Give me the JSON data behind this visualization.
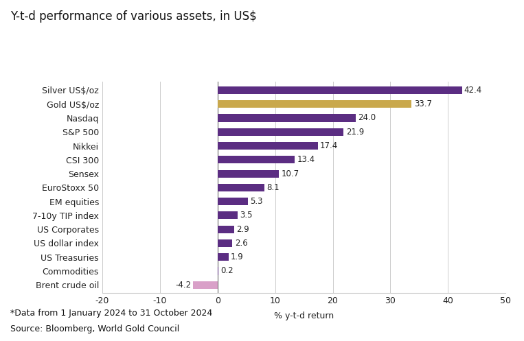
{
  "title": "Y-t-d performance of various assets, in US$",
  "categories": [
    "Brent crude oil",
    "Commodities",
    "US Treasuries",
    "US dollar index",
    "US Corporates",
    "7-10y TIP index",
    "EM equities",
    "EuroStoxx 50",
    "Sensex",
    "CSI 300",
    "Nikkei",
    "S&P 500",
    "Nasdaq",
    "Gold US$/oz",
    "Silver US$/oz"
  ],
  "values": [
    -4.2,
    0.2,
    1.9,
    2.6,
    2.9,
    3.5,
    5.3,
    8.1,
    10.7,
    13.4,
    17.4,
    21.9,
    24.0,
    33.7,
    42.4
  ],
  "colors": [
    "#d9a0c8",
    "#5b2d82",
    "#5b2d82",
    "#5b2d82",
    "#5b2d82",
    "#5b2d82",
    "#5b2d82",
    "#5b2d82",
    "#5b2d82",
    "#5b2d82",
    "#5b2d82",
    "#5b2d82",
    "#5b2d82",
    "#c9a84c",
    "#5b2d82"
  ],
  "xlabel": "% y-t-d return",
  "xlim": [
    -20,
    50
  ],
  "xticks": [
    -20,
    -10,
    0,
    10,
    20,
    30,
    40,
    50
  ],
  "footnote1": "*Data from 1 January 2024 to 31 October 2024",
  "footnote2": "Source: Bloomberg, World Gold Council",
  "background_color": "#ffffff",
  "grid_color": "#cccccc",
  "bar_height": 0.55,
  "title_fontsize": 12,
  "label_fontsize": 9,
  "tick_fontsize": 9,
  "value_fontsize": 8.5
}
